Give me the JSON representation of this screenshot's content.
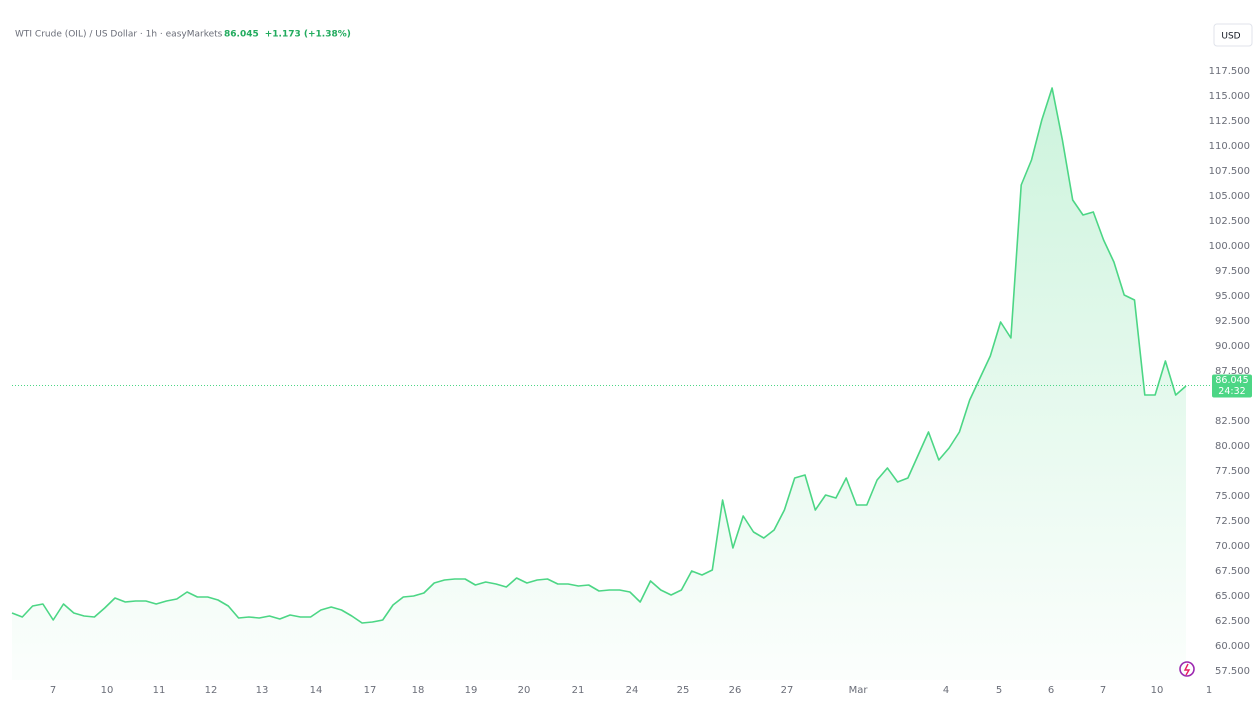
{
  "chart_data": {
    "type": "area",
    "title": "WTI Crude (OIL) / US Dollar · 1h · easyMarkets",
    "last_price": 86.045,
    "change": "+1.173 (+1.38%)",
    "currency": "USD",
    "countdown": "24:32",
    "color": "#4cd685",
    "x_axis_labels": [
      "7",
      "10",
      "11",
      "12",
      "13",
      "14",
      "17",
      "18",
      "19",
      "20",
      "21",
      "24",
      "25",
      "26",
      "27",
      "Mar",
      "4",
      "5",
      "6",
      "7",
      "10",
      "1"
    ],
    "ylim": [
      56.6,
      119.6
    ],
    "yticks": [
      {
        "value": 57.5,
        "label": "57.500"
      },
      {
        "value": 60,
        "label": "60.000"
      },
      {
        "value": 62.5,
        "label": "62.500"
      },
      {
        "value": 65,
        "label": "65.000"
      },
      {
        "value": 67.5,
        "label": "67.500"
      },
      {
        "value": 70,
        "label": "70.000"
      },
      {
        "value": 72.5,
        "label": "72.500"
      },
      {
        "value": 75,
        "label": "75.000"
      },
      {
        "value": 77.5,
        "label": "77.500"
      },
      {
        "value": 80,
        "label": "80.000"
      },
      {
        "value": 82.5,
        "label": "82.500"
      },
      {
        "value": 87.5,
        "label": "87.500"
      },
      {
        "value": 90,
        "label": "90.000"
      },
      {
        "value": 92.5,
        "label": "92.500"
      },
      {
        "value": 95,
        "label": "95.000"
      },
      {
        "value": 97.5,
        "label": "97.500"
      },
      {
        "value": 100,
        "label": "100.000"
      },
      {
        "value": 102.5,
        "label": "102.500"
      },
      {
        "value": 105,
        "label": "105.000"
      },
      {
        "value": 107.5,
        "label": "107.500"
      },
      {
        "value": 110,
        "label": "110.000"
      },
      {
        "value": 112.5,
        "label": "112.500"
      },
      {
        "value": 115,
        "label": "115.000"
      },
      {
        "value": 117.5,
        "label": "117.500"
      }
    ],
    "values": [
      63.3,
      62.9,
      64.0,
      64.2,
      62.6,
      64.2,
      63.3,
      63.0,
      62.9,
      63.8,
      64.8,
      64.4,
      64.5,
      64.5,
      64.2,
      64.5,
      64.7,
      65.4,
      64.9,
      64.9,
      64.6,
      64.0,
      62.8,
      62.9,
      62.8,
      63.0,
      62.7,
      63.1,
      62.9,
      62.9,
      63.6,
      63.9,
      63.6,
      63.0,
      62.3,
      62.4,
      62.6,
      64.1,
      64.9,
      65.0,
      65.3,
      66.3,
      66.6,
      66.7,
      66.7,
      66.1,
      66.4,
      66.2,
      65.9,
      66.8,
      66.3,
      66.6,
      66.7,
      66.2,
      66.2,
      66.0,
      66.1,
      65.5,
      65.6,
      65.6,
      65.4,
      64.4,
      66.5,
      65.6,
      65.1,
      65.6,
      67.5,
      67.1,
      67.6,
      74.6,
      69.8,
      73.0,
      71.4,
      70.8,
      71.6,
      73.6,
      76.8,
      77.1,
      73.6,
      75.1,
      74.8,
      76.8,
      74.1,
      74.1,
      76.6,
      77.8,
      76.4,
      76.8,
      79.1,
      81.4,
      78.6,
      79.8,
      81.4,
      84.6,
      86.8,
      89.0,
      92.4,
      90.8,
      106.1,
      108.6,
      112.6,
      115.8,
      110.6,
      104.6,
      103.1,
      103.4,
      100.6,
      98.4,
      95.1,
      94.6,
      85.1,
      85.1,
      88.5,
      85.1,
      86.0
    ]
  }
}
